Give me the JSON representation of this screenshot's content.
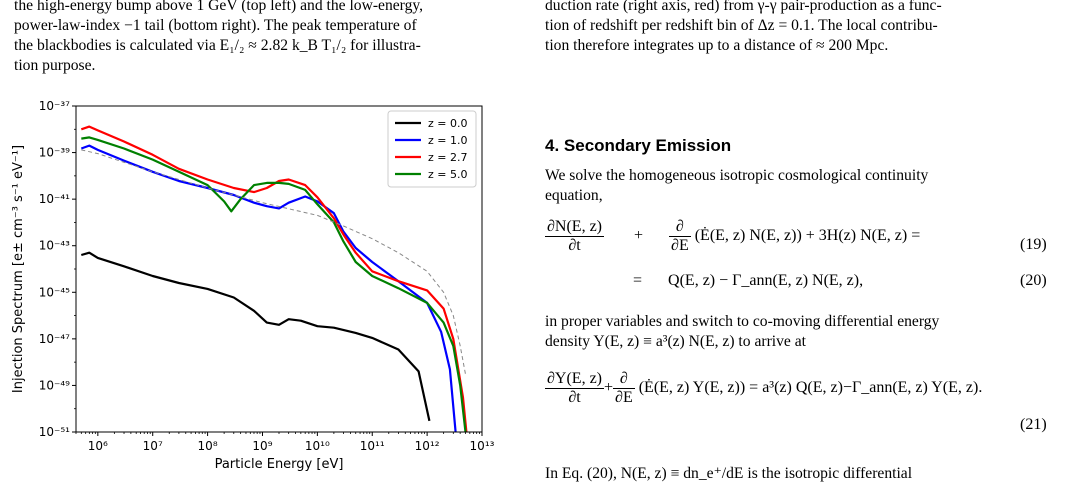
{
  "left_text": {
    "lines": [
      "the high-energy bump above 1 GeV (top left) and the low-energy,",
      "power-law-index −1 tail (bottom right). The peak temperature of",
      "the blackbodies is calculated via E₁/₂ ≈ 2.82 k_B T₁/₂ for illustra-",
      "tion purpose."
    ]
  },
  "right_text": {
    "lines": [
      "duction rate (right axis, red) from γ-γ pair-production as a func-",
      "tion of redshift per redshift bin of Δz = 0.1. The local contribu-",
      "tion therefore integrates up to a distance of ≈ 200 Mpc."
    ]
  },
  "section": {
    "title": "4. Secondary Emission",
    "intro_lines": [
      "We solve the homogeneous isotropic cosmological continuity",
      "equation,"
    ],
    "eq19_lhs_num": "∂N(E, z)",
    "eq19_lhs_den": "∂t",
    "eq19_plus": "+",
    "eq19_d_num": "∂",
    "eq19_d_den": "∂E",
    "eq19_rest": "(Ė(E, z) N(E, z)) + 3H(z) N(E, z) =",
    "eq19_num": "(19)",
    "eq20_eq": "=",
    "eq20_rest": "Q(E, z) − Γ_ann(E, z) N(E, z),",
    "eq20_num": "(20)",
    "mid_lines": [
      "in proper variables and switch to co-moving differential energy",
      "density Y(E, z) ≡ a³(z) N(E, z) to arrive at"
    ],
    "eq21_lhs_num": "∂Y(E, z)",
    "eq21_lhs_den": "∂t",
    "eq21_d_num": "∂",
    "eq21_d_den": "∂E",
    "eq21_rest": "(Ė(E, z) Y(E, z)) = a³(z) Q(E, z)−Γ_ann(E, z) Y(E, z).",
    "eq21_num": "(21)",
    "last_line": "In Eq. (20),  N(E, z)  ≡  dn_e⁺/dE  is  the  isotropic  differential"
  },
  "chart_data": {
    "type": "line",
    "xlabel": "Particle Energy [eV]",
    "ylabel": "Injection Spectrum [e± cm⁻³ s⁻¹ eV⁻¹]",
    "x_scale": "log",
    "y_scale": "log",
    "xlim": [
      400000,
      10000000000000
    ],
    "ylim": [
      1e-51,
      1e-37
    ],
    "x_ticks": [
      "10⁶",
      "10⁷",
      "10⁸",
      "10⁹",
      "10¹⁰",
      "10¹¹",
      "10¹²",
      "10¹³"
    ],
    "x_tick_values": [
      1000000.0,
      10000000.0,
      100000000.0,
      1000000000.0,
      10000000000.0,
      100000000000.0,
      1000000000000.0,
      10000000000000.0
    ],
    "y_ticks": [
      "10⁻⁵¹",
      "10⁻⁴⁹",
      "10⁻⁴⁷",
      "10⁻⁴⁵",
      "10⁻⁴³",
      "10⁻⁴¹",
      "10⁻³⁹",
      "10⁻³⁷"
    ],
    "y_tick_values": [
      1e-51,
      1e-49,
      1e-47,
      1e-45,
      1e-43,
      1e-41,
      1e-39,
      1e-37
    ],
    "legend_position": "top-right",
    "grid": false,
    "series": [
      {
        "name": "z = 0.0",
        "color": "#000000",
        "points": [
          [
            500000.0,
            4e-44
          ],
          [
            700000.0,
            5e-44
          ],
          [
            1000000.0,
            3e-44
          ],
          [
            3000000.0,
            1.3e-44
          ],
          [
            10000000.0,
            5e-45
          ],
          [
            30000000.0,
            2.5e-45
          ],
          [
            100000000.0,
            1.4e-45
          ],
          [
            300000000.0,
            6e-46
          ],
          [
            700000000.0,
            1.6e-46
          ],
          [
            1200000000.0,
            5e-47
          ],
          [
            2000000000.0,
            4e-47
          ],
          [
            3000000000.0,
            7e-47
          ],
          [
            5000000000.0,
            6e-47
          ],
          [
            10000000000.0,
            3.5e-47
          ],
          [
            20000000000.0,
            3e-47
          ],
          [
            50000000000.0,
            1.8e-47
          ],
          [
            100000000000.0,
            1.1e-47
          ],
          [
            300000000000.0,
            3.5e-48
          ],
          [
            700000000000.0,
            4e-49
          ],
          [
            1100000000000.0,
            3e-51
          ]
        ]
      },
      {
        "name": "z = 1.0",
        "color": "#0000ff",
        "points": [
          [
            500000.0,
            1.5e-39
          ],
          [
            700000.0,
            2e-39
          ],
          [
            1000000.0,
            1.3e-39
          ],
          [
            3000000.0,
            4.5e-40
          ],
          [
            10000000.0,
            1.5e-40
          ],
          [
            30000000.0,
            6e-41
          ],
          [
            100000000.0,
            3e-41
          ],
          [
            300000000.0,
            1.5e-41
          ],
          [
            700000000.0,
            7e-42
          ],
          [
            1200000000.0,
            5e-42
          ],
          [
            2000000000.0,
            4e-42
          ],
          [
            3000000000.0,
            7e-42
          ],
          [
            6000000000.0,
            1.3e-41
          ],
          [
            10000000000.0,
            8e-42
          ],
          [
            20000000000.0,
            2.5e-42
          ],
          [
            30000000000.0,
            4e-43
          ],
          [
            50000000000.0,
            8e-44
          ],
          [
            100000000000.0,
            2e-44
          ],
          [
            300000000000.0,
            3e-45
          ],
          [
            1000000000000.0,
            3.5e-46
          ],
          [
            1800000000000.0,
            2e-47
          ],
          [
            2600000000000.0,
            5e-49
          ],
          [
            3300000000000.0,
            1e-51
          ]
        ]
      },
      {
        "name": "z = 2.7",
        "color": "#ff0000",
        "points": [
          [
            500000.0,
            1e-38
          ],
          [
            700000.0,
            1.3e-38
          ],
          [
            1000000.0,
            9e-39
          ],
          [
            3000000.0,
            3e-39
          ],
          [
            10000000.0,
            8e-40
          ],
          [
            30000000.0,
            2e-40
          ],
          [
            100000000.0,
            7e-41
          ],
          [
            300000000.0,
            3e-41
          ],
          [
            700000000.0,
            2e-41
          ],
          [
            1200000000.0,
            3e-41
          ],
          [
            2000000000.0,
            6e-41
          ],
          [
            3000000000.0,
            7e-41
          ],
          [
            6000000000.0,
            4e-41
          ],
          [
            10000000000.0,
            1.2e-41
          ],
          [
            20000000000.0,
            1.5e-42
          ],
          [
            30000000000.0,
            3e-43
          ],
          [
            50000000000.0,
            5e-44
          ],
          [
            100000000000.0,
            8e-45
          ],
          [
            300000000000.0,
            3e-45
          ],
          [
            1000000000000.0,
            1.2e-45
          ],
          [
            2000000000000.0,
            2e-46
          ],
          [
            3000000000000.0,
            1e-47
          ],
          [
            4500000000000.0,
            3e-50
          ],
          [
            5200000000000.0,
            1e-51
          ]
        ]
      },
      {
        "name": "z = 5.0",
        "color": "#008000",
        "points": [
          [
            500000.0,
            4e-39
          ],
          [
            700000.0,
            4.5e-39
          ],
          [
            1000000.0,
            3.5e-39
          ],
          [
            3000000.0,
            1.5e-39
          ],
          [
            10000000.0,
            5e-40
          ],
          [
            30000000.0,
            1.5e-40
          ],
          [
            100000000.0,
            4e-41
          ],
          [
            200000000.0,
            8e-42
          ],
          [
            270000000.0,
            3e-42
          ],
          [
            400000000.0,
            1e-41
          ],
          [
            700000000.0,
            4e-41
          ],
          [
            1200000000.0,
            5e-41
          ],
          [
            2000000000.0,
            5e-41
          ],
          [
            3000000000.0,
            4.5e-41
          ],
          [
            6000000000.0,
            2.5e-41
          ],
          [
            10000000000.0,
            6e-42
          ],
          [
            20000000000.0,
            1e-42
          ],
          [
            30000000000.0,
            1.5e-43
          ],
          [
            50000000000.0,
            2e-44
          ],
          [
            100000000000.0,
            5e-45
          ],
          [
            300000000000.0,
            1.5e-45
          ],
          [
            1000000000000.0,
            3.5e-46
          ],
          [
            2000000000000.0,
            5e-47
          ],
          [
            3000000000000.0,
            5e-48
          ],
          [
            4000000000000.0,
            1e-49
          ],
          [
            5000000000000.0,
            1e-51
          ]
        ]
      },
      {
        "name": "",
        "color": "#888888",
        "dashed": true,
        "points": [
          [
            500000.0,
            1.3e-39
          ],
          [
            1000000.0,
            9e-40
          ],
          [
            10000000.0,
            1.5e-40
          ],
          [
            100000000.0,
            3e-41
          ],
          [
            1000000000.0,
            7e-42
          ],
          [
            10000000000.0,
            2e-42
          ],
          [
            30000000000.0,
            7e-43
          ],
          [
            100000000000.0,
            2e-43
          ],
          [
            300000000000.0,
            5e-44
          ],
          [
            1000000000000.0,
            8e-45
          ],
          [
            2000000000000.0,
            1e-45
          ],
          [
            3000000000000.0,
            1e-46
          ],
          [
            4000000000000.0,
            5e-48
          ],
          [
            5000000000000.0,
            3e-49
          ]
        ]
      }
    ]
  }
}
